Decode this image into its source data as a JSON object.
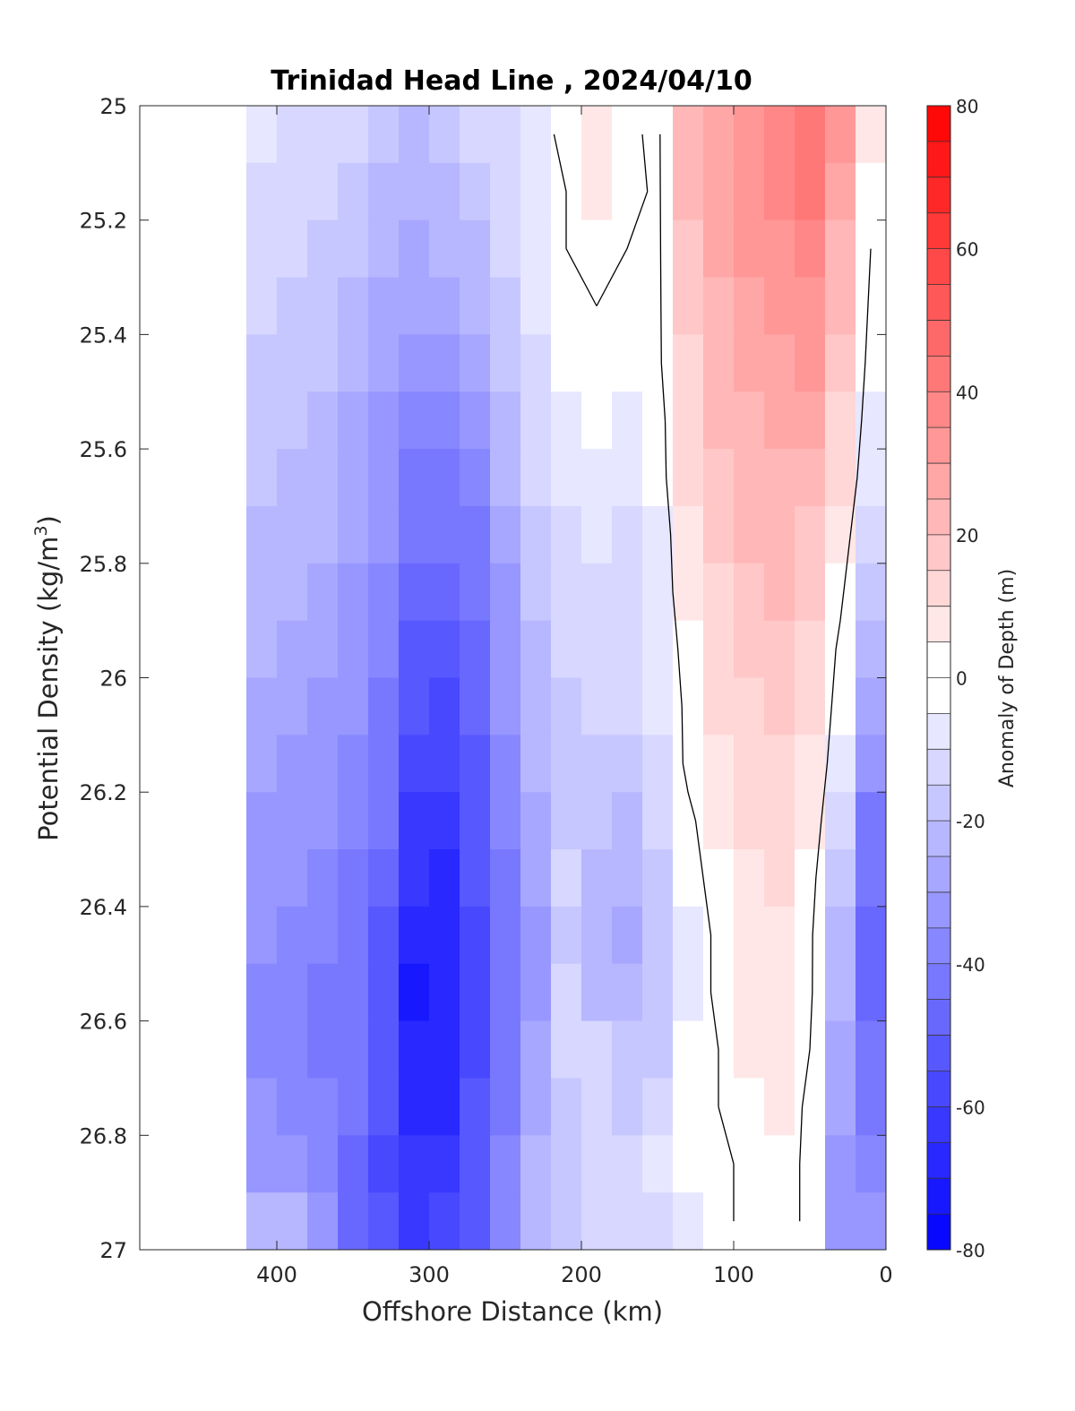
{
  "chart_data": {
    "type": "heatmap",
    "title": "Trinidad Head Line , 2024/04/10",
    "xlabel": "Offshore Distance (km)",
    "ylabel_main": "Potential Density (kg/m",
    "ylabel_sup": "3",
    "ylabel_close": ")",
    "x_reversed": true,
    "xlim": [
      0,
      490
    ],
    "ylim": [
      25,
      27
    ],
    "y_reversed": true,
    "xticks": [
      400,
      300,
      200,
      100,
      0
    ],
    "xtick_labels": [
      "400",
      "300",
      "200",
      "100",
      "0"
    ],
    "yticks": [
      25,
      25.2,
      25.4,
      25.6,
      25.8,
      26,
      26.2,
      26.4,
      26.6,
      26.8,
      27
    ],
    "ytick_labels": [
      "25",
      "25.2",
      "25.4",
      "25.6",
      "25.8",
      "26",
      "26.2",
      "26.4",
      "26.6",
      "26.8",
      "27"
    ],
    "colorbar": {
      "label": "Anomaly of Depth (m)",
      "range": [
        -80,
        80
      ],
      "step": 5,
      "ticks": [
        80,
        60,
        40,
        20,
        0,
        -20,
        -40,
        -60,
        -80
      ],
      "tick_labels": [
        "80",
        "60",
        "40",
        "20",
        "0",
        "-20",
        "-40",
        "-60",
        "-80"
      ],
      "colormap": "blue-white-red",
      "low_color": "#0000ff",
      "mid_color": "#ffffff",
      "high_color": "#ff0000"
    },
    "grid": {
      "x": [
        410,
        390,
        370,
        350,
        330,
        310,
        290,
        270,
        250,
        230,
        210,
        190,
        170,
        150,
        130,
        110,
        90,
        70,
        50,
        30,
        10
      ],
      "y": [
        25.0,
        25.1,
        25.2,
        25.3,
        25.4,
        25.5,
        25.6,
        25.7,
        25.8,
        25.9,
        26.0,
        26.1,
        26.2,
        26.3,
        26.4,
        26.5,
        26.6,
        26.7,
        26.8,
        26.9
      ],
      "z": [
        [
          -8,
          -10,
          -12,
          -14,
          -18,
          -20,
          -18,
          -14,
          -10,
          -6,
          4,
          8,
          2,
          -2,
          22,
          28,
          32,
          36,
          40,
          30,
          5
        ],
        [
          -10,
          -12,
          -13,
          -15,
          -20,
          -22,
          -20,
          -16,
          -12,
          -6,
          0,
          6,
          4,
          -2,
          20,
          28,
          32,
          36,
          40,
          28,
          2
        ],
        [
          -12,
          -14,
          -15,
          -18,
          -22,
          -25,
          -24,
          -20,
          -14,
          -6,
          0,
          2,
          0,
          -2,
          18,
          26,
          30,
          32,
          36,
          24,
          0
        ],
        [
          -14,
          -16,
          -17,
          -20,
          -25,
          -28,
          -28,
          -24,
          -16,
          -8,
          -2,
          0,
          -2,
          -2,
          16,
          24,
          28,
          30,
          32,
          20,
          -2
        ],
        [
          -15,
          -17,
          -18,
          -22,
          -28,
          -32,
          -32,
          -28,
          -18,
          -10,
          -4,
          -2,
          -4,
          -2,
          14,
          22,
          26,
          28,
          30,
          18,
          -4
        ],
        [
          -16,
          -18,
          -20,
          -25,
          -30,
          -36,
          -36,
          -32,
          -20,
          -12,
          -6,
          -4,
          -6,
          -4,
          12,
          20,
          24,
          26,
          26,
          14,
          -6
        ],
        [
          -18,
          -20,
          -22,
          -27,
          -32,
          -40,
          -40,
          -36,
          -24,
          -14,
          -8,
          -6,
          -8,
          -4,
          10,
          18,
          22,
          24,
          22,
          10,
          -8
        ],
        [
          -20,
          -22,
          -24,
          -28,
          -34,
          -44,
          -44,
          -40,
          -26,
          -16,
          -10,
          -8,
          -10,
          -6,
          8,
          16,
          20,
          22,
          18,
          6,
          -12
        ],
        [
          -22,
          -24,
          -26,
          -30,
          -36,
          -48,
          -48,
          -44,
          -30,
          -18,
          -12,
          -10,
          -12,
          -6,
          6,
          14,
          18,
          20,
          16,
          2,
          -16
        ],
        [
          -24,
          -26,
          -28,
          -32,
          -38,
          -50,
          -52,
          -46,
          -32,
          -20,
          -14,
          -12,
          -12,
          -8,
          4,
          12,
          16,
          18,
          12,
          -2,
          -20
        ],
        [
          -26,
          -28,
          -30,
          -34,
          -40,
          -54,
          -56,
          -48,
          -34,
          -22,
          -16,
          -14,
          -14,
          -8,
          2,
          10,
          14,
          16,
          10,
          -4,
          -26
        ],
        [
          -28,
          -30,
          -32,
          -36,
          -42,
          -56,
          -58,
          -50,
          -36,
          -24,
          -18,
          -16,
          -16,
          -10,
          2,
          8,
          12,
          14,
          8,
          -6,
          -32
        ],
        [
          -30,
          -32,
          -34,
          -38,
          -44,
          -60,
          -62,
          -52,
          -38,
          -26,
          -16,
          -18,
          -20,
          -12,
          -2,
          6,
          10,
          12,
          6,
          -10,
          -40
        ],
        [
          -32,
          -34,
          -36,
          -40,
          -48,
          -64,
          -66,
          -54,
          -40,
          -28,
          -14,
          -20,
          -24,
          -16,
          -4,
          4,
          8,
          10,
          4,
          -16,
          -44
        ],
        [
          -34,
          -36,
          -38,
          -42,
          -50,
          -68,
          -66,
          -56,
          -42,
          -30,
          -16,
          -22,
          -26,
          -18,
          -6,
          2,
          6,
          8,
          2,
          -20,
          -46
        ],
        [
          -36,
          -38,
          -40,
          -44,
          -52,
          -72,
          -68,
          -56,
          -44,
          -30,
          -12,
          -20,
          -24,
          -18,
          -6,
          2,
          6,
          8,
          2,
          -22,
          -46
        ],
        [
          -36,
          -38,
          -40,
          -44,
          -52,
          -68,
          -66,
          -56,
          -42,
          -28,
          -10,
          -14,
          -18,
          -16,
          -4,
          0,
          6,
          8,
          0,
          -26,
          -44
        ],
        [
          -34,
          -36,
          -38,
          -44,
          -52,
          -66,
          -66,
          -54,
          -40,
          -26,
          -16,
          -14,
          -16,
          -14,
          -2,
          0,
          4,
          6,
          -2,
          -28,
          -40
        ],
        [
          -30,
          -32,
          -38,
          -48,
          -56,
          -62,
          -62,
          -52,
          -38,
          -24,
          -16,
          -14,
          -14,
          -8,
          -4,
          -2,
          2,
          4,
          -2,
          -30,
          -36
        ],
        [
          -20,
          -20,
          -30,
          -46,
          -54,
          -60,
          -58,
          -50,
          -36,
          -22,
          -16,
          -14,
          -14,
          -10,
          -6,
          -2,
          2,
          4,
          -2,
          -30,
          -30
        ]
      ]
    }
  }
}
